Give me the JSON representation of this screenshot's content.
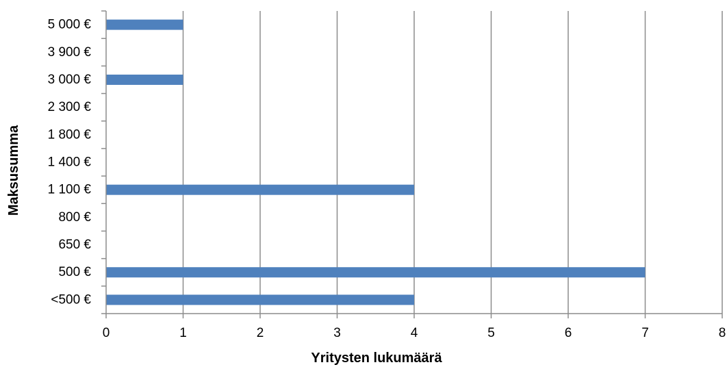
{
  "chart_data": {
    "type": "bar",
    "orientation": "horizontal",
    "title": "",
    "xlabel": "Yritysten lukumäärä",
    "ylabel": "Maksusumma",
    "categories": [
      "<500 €",
      "500 €",
      "650 €",
      "800 €",
      "1 100 €",
      "1 400 €",
      "1 800 €",
      "2 300 €",
      "3 000 €",
      "3 900 €",
      "5 000 €"
    ],
    "values": [
      4,
      7,
      0,
      0,
      4,
      0,
      0,
      0,
      1,
      0,
      1
    ],
    "xlim": [
      0,
      8
    ],
    "xticks": [
      "0",
      "1",
      "2",
      "3",
      "4",
      "5",
      "6",
      "7",
      "8"
    ],
    "grid": "vertical",
    "legend": "none",
    "bar_color": "#4f81bd",
    "grid_color": "#8c8c8c"
  }
}
